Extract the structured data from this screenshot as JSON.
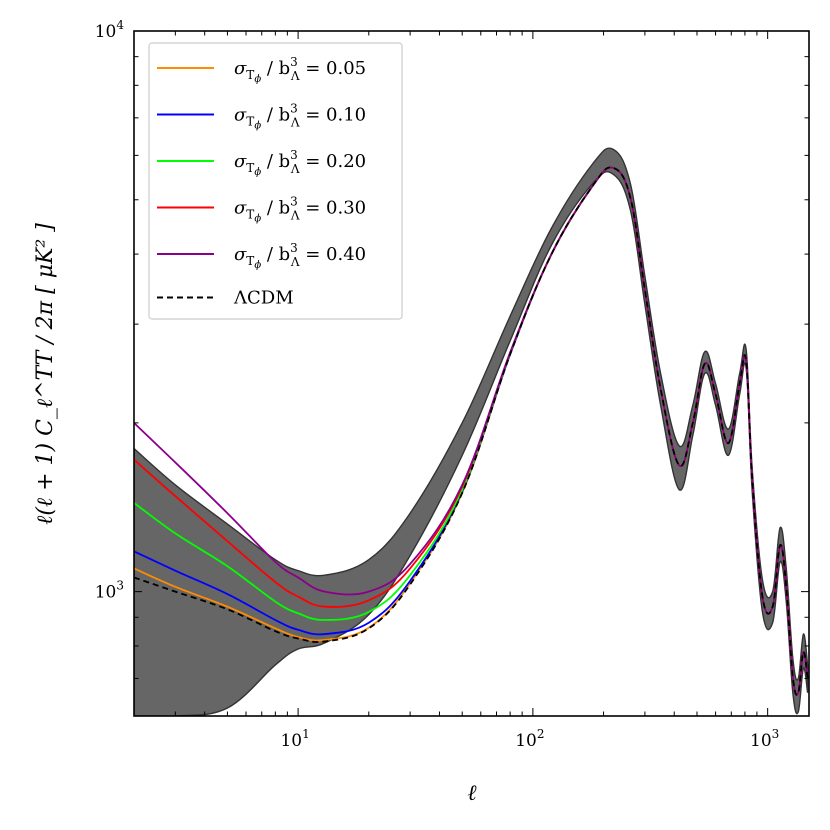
{
  "chart_data": {
    "type": "line",
    "title": "",
    "xlabel": "ℓ",
    "ylabel": "ℓ(ℓ + 1) C_ℓ^TT / 2π  [ μK² ]",
    "xscale": "log",
    "yscale": "log",
    "xlim": [
      2,
      1500
    ],
    "ylim": [
      600,
      10000
    ],
    "grid": false,
    "legend_position": "top-left",
    "x_tick_labels": [
      {
        "value": 10,
        "base": "10",
        "exp": "1"
      },
      {
        "value": 100,
        "base": "10",
        "exp": "2"
      },
      {
        "value": 1000,
        "base": "10",
        "exp": "3"
      }
    ],
    "y_tick_labels": [
      {
        "value": 1000,
        "base": "10",
        "exp": "3"
      },
      {
        "value": 10000,
        "base": "10",
        "exp": "4"
      }
    ],
    "band": {
      "name": "cosmic variance",
      "color": "#666666",
      "x": [
        2,
        3,
        5,
        8,
        10,
        13,
        20,
        30,
        50,
        80,
        120,
        180,
        220,
        260,
        300,
        350,
        420,
        480,
        540,
        600,
        680,
        760,
        810,
        860,
        950,
        1050,
        1130,
        1200,
        1280,
        1350,
        1420,
        1480
      ],
      "upper": [
        1800,
        1550,
        1320,
        1140,
        1090,
        1070,
        1140,
        1380,
        2000,
        3100,
        4450,
        5800,
        6150,
        5350,
        3650,
        2450,
        1820,
        2150,
        2680,
        2350,
        1950,
        2450,
        2700,
        1650,
        1050,
        1000,
        1300,
        1100,
        760,
        700,
        840,
        740
      ],
      "lower": [
        600,
        600,
        620,
        740,
        790,
        810,
        910,
        1160,
        1750,
        2800,
        4150,
        5350,
        5550,
        4800,
        3250,
        2150,
        1520,
        1900,
        2450,
        2150,
        1750,
        2250,
        2500,
        1500,
        920,
        880,
        1130,
        960,
        660,
        610,
        730,
        660
      ]
    },
    "x": [
      2,
      3,
      5,
      8,
      10,
      13,
      20,
      30,
      50,
      80,
      120,
      180,
      220,
      260,
      300,
      350,
      420,
      480,
      540,
      600,
      680,
      760,
      810,
      860,
      950,
      1050,
      1130,
      1200,
      1280,
      1350,
      1420,
      1480
    ],
    "series": [
      {
        "name": "LCDM",
        "label": "ΛCDM",
        "color": "#000000",
        "dashed": true,
        "values": [
          1060,
          1000,
          930,
          850,
          825,
          815,
          860,
          1030,
          1500,
          2650,
          4000,
          5300,
          5700,
          5050,
          3450,
          2300,
          1680,
          2000,
          2550,
          2250,
          1840,
          2350,
          2580,
          1580,
          980,
          940,
          1210,
          1020,
          705,
          660,
          780,
          700
        ]
      },
      {
        "name": "s005",
        "label": "0.05",
        "color": "#ff8c00",
        "dashed": false,
        "values": [
          1100,
          1020,
          940,
          860,
          830,
          820,
          862,
          1035,
          1500,
          2650,
          4000,
          5300,
          5700,
          5050,
          3450,
          2300,
          1680,
          2000,
          2550,
          2250,
          1840,
          2350,
          2580,
          1580,
          980,
          940,
          1210,
          1020,
          705,
          660,
          780,
          700
        ]
      },
      {
        "name": "s010",
        "label": "0.10",
        "color": "#0000ff",
        "dashed": false,
        "values": [
          1180,
          1090,
          990,
          890,
          855,
          840,
          880,
          1045,
          1510,
          2650,
          4000,
          5300,
          5700,
          5050,
          3450,
          2300,
          1680,
          2000,
          2550,
          2250,
          1840,
          2350,
          2580,
          1580,
          980,
          940,
          1210,
          1020,
          705,
          660,
          780,
          700
        ]
      },
      {
        "name": "s020",
        "label": "0.20",
        "color": "#00ff00",
        "dashed": false,
        "values": [
          1440,
          1270,
          1110,
          960,
          915,
          890,
          920,
          1070,
          1520,
          2660,
          4000,
          5300,
          5700,
          5050,
          3450,
          2300,
          1680,
          2000,
          2550,
          2250,
          1840,
          2350,
          2580,
          1580,
          980,
          940,
          1210,
          1020,
          705,
          660,
          780,
          700
        ]
      },
      {
        "name": "s030",
        "label": "0.30",
        "color": "#ff0000",
        "dashed": false,
        "values": [
          1720,
          1480,
          1230,
          1040,
          980,
          940,
          965,
          1100,
          1540,
          2665,
          4000,
          5300,
          5700,
          5050,
          3450,
          2300,
          1680,
          2000,
          2550,
          2250,
          1840,
          2350,
          2580,
          1580,
          980,
          940,
          1210,
          1020,
          705,
          660,
          780,
          700
        ]
      },
      {
        "name": "s040",
        "label": "0.40",
        "color": "#8b008b",
        "dashed": false,
        "values": [
          2000,
          1700,
          1380,
          1130,
          1060,
          1000,
          1000,
          1120,
          1550,
          2670,
          4000,
          5300,
          5700,
          5050,
          3450,
          2300,
          1680,
          2000,
          2550,
          2250,
          1840,
          2350,
          2580,
          1580,
          980,
          940,
          1210,
          1020,
          705,
          660,
          780,
          700
        ]
      }
    ],
    "legend": {
      "entries": [
        {
          "series": "s005",
          "prefix": "σ",
          "sub1": "T",
          "sub2": "ϕ",
          "mid": " / b",
          "sup": "3",
          "sub3": "Λ",
          "eq": " = ",
          "value": "0.05"
        },
        {
          "series": "s010",
          "prefix": "σ",
          "sub1": "T",
          "sub2": "ϕ",
          "mid": " / b",
          "sup": "3",
          "sub3": "Λ",
          "eq": " = ",
          "value": "0.10"
        },
        {
          "series": "s020",
          "prefix": "σ",
          "sub1": "T",
          "sub2": "ϕ",
          "mid": " / b",
          "sup": "3",
          "sub3": "Λ",
          "eq": " = ",
          "value": "0.20"
        },
        {
          "series": "s030",
          "prefix": "σ",
          "sub1": "T",
          "sub2": "ϕ",
          "mid": " / b",
          "sup": "3",
          "sub3": "Λ",
          "eq": " = ",
          "value": "0.30"
        },
        {
          "series": "s040",
          "prefix": "σ",
          "sub1": "T",
          "sub2": "ϕ",
          "mid": " / b",
          "sup": "3",
          "sub3": "Λ",
          "eq": " = ",
          "value": "0.40"
        }
      ],
      "lcdm_label": "ΛCDM"
    }
  }
}
